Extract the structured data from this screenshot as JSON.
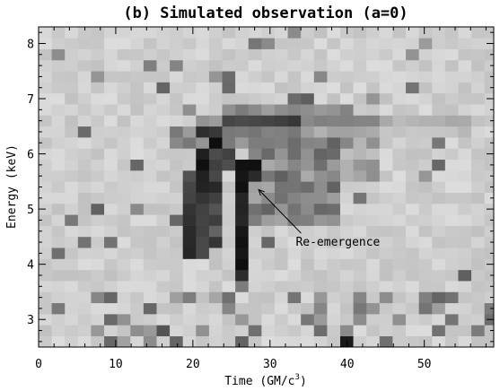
{
  "chart_data": {
    "type": "heatmap",
    "title": "(b) Simulated observation (a=0)",
    "xlabel": "Time (GM/c",
    "xlabel_sup": "3",
    "xlabel_close": ")",
    "ylabel": "Energy (keV)",
    "xlim": [
      0,
      59
    ],
    "ylim": [
      2.5,
      8.3
    ],
    "xticks": [
      "0",
      "10",
      "20",
      "30",
      "40",
      "50"
    ],
    "yticks": [
      "3",
      "4",
      "5",
      "6",
      "7",
      "8"
    ],
    "grid": false,
    "colormap": "grayscale (dark = high counts)",
    "time_bin": 1.7,
    "energy_bin": 0.2,
    "features": [
      {
        "name": "main line (bright streak)",
        "points": [
          [
            20,
            4.1
          ],
          [
            20.3,
            5.0
          ],
          [
            21.5,
            6.0
          ],
          [
            24,
            6.35
          ],
          [
            30,
            6.5
          ],
          [
            40,
            6.55
          ],
          [
            54,
            6.55
          ]
        ]
      },
      {
        "name": "secondary track",
        "points": [
          [
            22.5,
            4.4
          ],
          [
            22.8,
            5.4
          ],
          [
            24,
            6.1
          ]
        ]
      },
      {
        "name": "re-emergence track",
        "points": [
          [
            26.2,
            3.8
          ],
          [
            26.5,
            4.5
          ],
          [
            27,
            5.6
          ],
          [
            27.2,
            6.0
          ]
        ]
      }
    ],
    "annotations": [
      {
        "text": "Re-emergence",
        "x": 34.5,
        "y": 4.4,
        "arrow_to": [
          28.3,
          5.4
        ]
      }
    ]
  }
}
